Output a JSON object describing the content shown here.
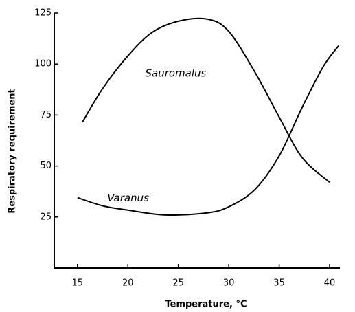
{
  "chart_data": {
    "type": "line",
    "x_label": "Temperature, °C",
    "y_label": "Respiratory requirement",
    "xlim": [
      12.7,
      41.7
    ],
    "xticks": [
      15,
      20,
      25,
      30,
      35,
      40
    ],
    "ylim": [
      0,
      125
    ],
    "yticks": [
      25,
      50,
      75,
      100,
      125
    ],
    "series": [
      {
        "name": "Sauromalus",
        "color": "#000000",
        "x": [
          15.5,
          17.5,
          20,
          22.4,
          25,
          27.9,
          30,
          32.6,
          35,
          37.3,
          40
        ],
        "values": [
          71.6,
          88,
          104,
          115.5,
          121,
          122,
          116,
          96,
          74,
          54,
          42
        ]
      },
      {
        "name": "Varanus",
        "color": "#000000",
        "x": [
          15,
          17.5,
          20,
          23.7,
          27.8,
          30,
          32.6,
          35,
          37.3,
          39.4,
          40.9
        ],
        "values": [
          34.5,
          30.5,
          28.4,
          26,
          27,
          30,
          38.5,
          55,
          79,
          99,
          109
        ]
      }
    ]
  }
}
